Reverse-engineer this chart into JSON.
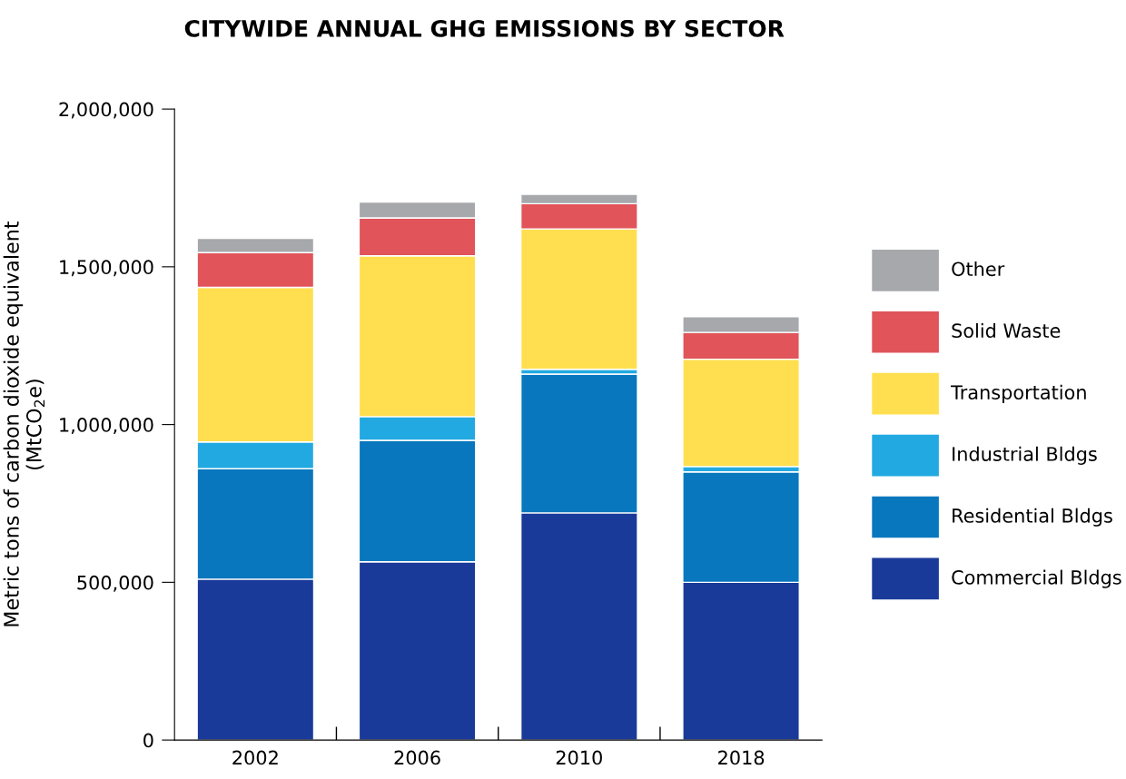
{
  "chart_data": {
    "type": "bar",
    "stacked": true,
    "title": "CITYWIDE ANNUAL GHG EMISSIONS BY SECTOR",
    "ylabel": "Metric tons of carbon dioxide equivalent\n(MtCO$_{2}$e)",
    "categories": [
      "2002",
      "2006",
      "2010",
      "2018"
    ],
    "series": [
      {
        "name": "Commercial Bldgs",
        "color": "#1a3a99",
        "values": [
          510000,
          565000,
          720000,
          500000
        ]
      },
      {
        "name": "Residential Bldgs",
        "color": "#0877be",
        "values": [
          350000,
          385000,
          440000,
          350000
        ]
      },
      {
        "name": "Industrial Bldgs",
        "color": "#22a9e1",
        "values": [
          85000,
          75000,
          15000,
          17000
        ]
      },
      {
        "name": "Transportation",
        "color": "#ffdf4f",
        "values": [
          490000,
          510000,
          445000,
          340000
        ]
      },
      {
        "name": "Solid Waste",
        "color": "#e0545a",
        "values": [
          110000,
          120000,
          80000,
          85000
        ]
      },
      {
        "name": "Other",
        "color": "#a7a8ac",
        "values": [
          45000,
          50000,
          30000,
          50000
        ]
      }
    ],
    "ylim": [
      0,
      2000000
    ],
    "yticks": [
      {
        "value": 0,
        "label": "0"
      },
      {
        "value": 500000,
        "label": "500,000"
      },
      {
        "value": 1000000,
        "label": "1,000,000"
      },
      {
        "value": 1500000,
        "label": "1,500,000"
      },
      {
        "value": 2000000,
        "label": "2,000,000"
      }
    ],
    "grid": false,
    "legend": "right"
  }
}
